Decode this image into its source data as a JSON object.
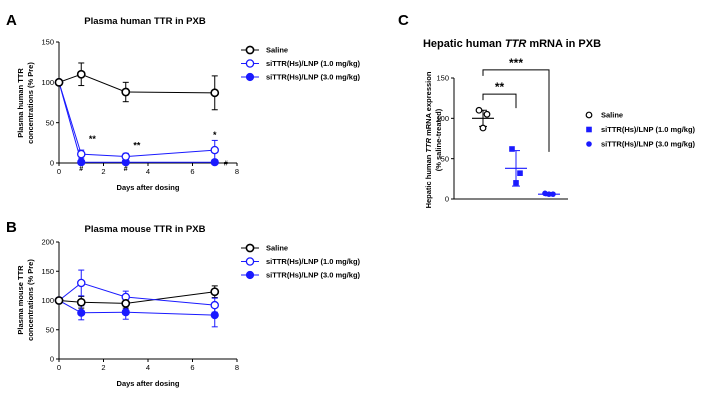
{
  "panel_labels": [
    "A",
    "B",
    "C"
  ],
  "chart_data": [
    {
      "id": "A",
      "type": "line",
      "title": "Plasma human TTR in PXB",
      "xlabel": "Days after dosing",
      "ylabel": [
        "Plasma human TTR",
        "concentrations (% Pre)"
      ],
      "xlim": [
        0,
        8
      ],
      "ylim": [
        0,
        150
      ],
      "xticks": [
        0,
        2,
        4,
        6,
        8
      ],
      "yticks": [
        0,
        50,
        100,
        150
      ],
      "legend_position": "right",
      "series": [
        {
          "name": "Saline",
          "marker": "open-black",
          "x": [
            0,
            1,
            3,
            7
          ],
          "y": [
            100,
            110,
            88,
            87
          ],
          "err": [
            0,
            14,
            12,
            21
          ]
        },
        {
          "name": "siTTR(Hs)/LNP (1.0 mg/kg)",
          "marker": "open-blue",
          "x": [
            0,
            1,
            3,
            7
          ],
          "y": [
            100,
            11,
            8,
            16
          ],
          "err": [
            0,
            5,
            4,
            12
          ]
        },
        {
          "name": "siTTR(Hs)/LNP (3.0 mg/kg)",
          "marker": "filled-blue",
          "x": [
            0,
            1,
            3,
            7
          ],
          "y": [
            100,
            1,
            1,
            1
          ],
          "err": [
            0,
            1,
            1,
            1
          ]
        }
      ],
      "annotations": [
        {
          "text": "**",
          "x": 1.5,
          "y": 26,
          "size": "big"
        },
        {
          "text": "#",
          "x": 1,
          "y": -10,
          "size": "small"
        },
        {
          "text": "**",
          "x": 3.5,
          "y": 18,
          "size": "big"
        },
        {
          "text": "#",
          "x": 3,
          "y": -10,
          "size": "small"
        },
        {
          "text": "*",
          "x": 7,
          "y": 31,
          "size": "big"
        },
        {
          "text": "#",
          "x": 7.5,
          "y": -3,
          "size": "small"
        }
      ]
    },
    {
      "id": "B",
      "type": "line",
      "title": "Plasma mouse TTR in PXB",
      "xlabel": "Days after dosing",
      "ylabel": [
        "Plasma mouse TTR",
        "concentrations (% Pre)"
      ],
      "xlim": [
        0,
        8
      ],
      "ylim": [
        0,
        200
      ],
      "xticks": [
        0,
        2,
        4,
        6,
        8
      ],
      "yticks": [
        0,
        50,
        100,
        150,
        200
      ],
      "legend_position": "right",
      "series": [
        {
          "name": "Saline",
          "marker": "open-black",
          "x": [
            0,
            1,
            3,
            7
          ],
          "y": [
            100,
            97,
            95,
            115
          ],
          "err": [
            0,
            10,
            8,
            10
          ]
        },
        {
          "name": "siTTR(Hs)/LNP (1.0 mg/kg)",
          "marker": "open-blue",
          "x": [
            0,
            1,
            3,
            7
          ],
          "y": [
            100,
            130,
            106,
            92
          ],
          "err": [
            0,
            22,
            10,
            12
          ]
        },
        {
          "name": "siTTR(Hs)/LNP (3.0 mg/kg)",
          "marker": "filled-blue",
          "x": [
            0,
            1,
            3,
            7
          ],
          "y": [
            100,
            79,
            80,
            75
          ],
          "err": [
            0,
            12,
            12,
            20
          ]
        }
      ]
    },
    {
      "id": "C",
      "type": "scatter",
      "title_parts": [
        "Hepatic human ",
        "TTR",
        " mRNA in PXB"
      ],
      "ylabel_parts": [
        "Hepatic human ",
        "TTR",
        " mRNA expression"
      ],
      "ylabel2": "(% saline-treated)",
      "ylim": [
        0,
        150
      ],
      "yticks": [
        0,
        50,
        100,
        150
      ],
      "legend_position": "right",
      "groups": [
        {
          "name": "Saline",
          "marker": "open-circle-black",
          "mean": 100,
          "sd": 10,
          "points": [
            110,
            105,
            88
          ]
        },
        {
          "name": "siTTR(Hs)/LNP (1.0 mg/kg)",
          "marker": "filled-square-blue",
          "mean": 38,
          "sd": 22,
          "points": [
            62,
            32,
            20
          ]
        },
        {
          "name": "siTTR(Hs)/LNP (3.0 mg/kg)",
          "marker": "filled-circle-blue",
          "mean": 6,
          "sd": 2,
          "points": [
            7,
            6,
            6
          ]
        }
      ],
      "significance": [
        {
          "text": "**",
          "from": 0,
          "to": 1,
          "y": 130
        },
        {
          "text": "***",
          "from": 0,
          "to": 2,
          "y": 160
        }
      ]
    }
  ]
}
